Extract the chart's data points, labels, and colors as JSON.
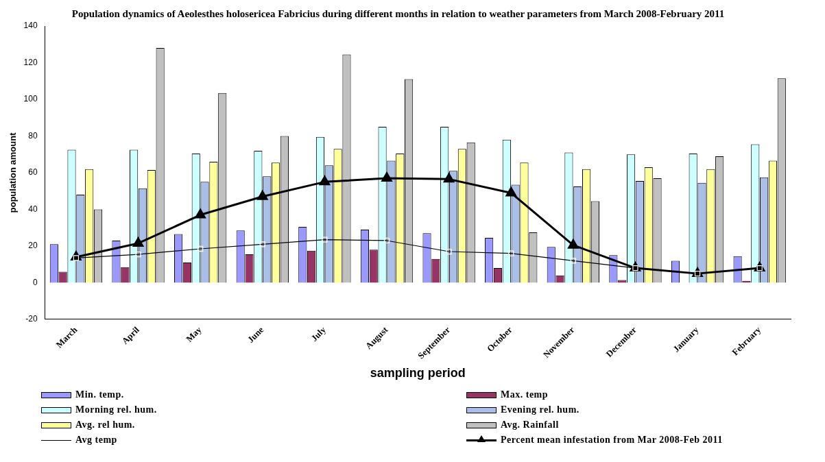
{
  "chart_data": {
    "type": "bar",
    "title": "Population dynamics of Aeolesthes holosericea Fabricius during different months in relation to weather parameters from March 2008-February 2011",
    "xlabel": "sampling period",
    "ylabel": "population amount",
    "categories": [
      "March",
      "April",
      "May",
      "June",
      "July",
      "August",
      "September",
      "October",
      "November",
      "December",
      "January",
      "February"
    ],
    "series": [
      {
        "name": "Min. temp.",
        "color": "#9999ff",
        "values": [
          21,
          23,
          26.5,
          28.5,
          30.5,
          29,
          27,
          24.5,
          19.5,
          15,
          12,
          14.5
        ]
      },
      {
        "name": "Max. temp",
        "color": "#993366",
        "values": [
          6,
          8.5,
          11,
          15.5,
          17.5,
          18,
          13,
          8,
          4,
          1.5,
          0,
          1
        ]
      },
      {
        "name": "Morning rel. hum.",
        "color": "#ccffff",
        "values": [
          72.5,
          72.5,
          70.5,
          72,
          79.5,
          85,
          85,
          78,
          71,
          70,
          70.5,
          75.5
        ]
      },
      {
        "name": "Evening rel. hum.",
        "color": "#a9bfe8",
        "values": [
          48,
          51.5,
          55,
          58,
          64,
          66.5,
          61,
          53.5,
          52.5,
          55.5,
          54.5,
          57.5
        ]
      },
      {
        "name": "Avg. rel hum.",
        "color": "#ffff99",
        "values": [
          62,
          61.5,
          66,
          65.5,
          73,
          70.5,
          73,
          65.5,
          62,
          63,
          62,
          66.5
        ]
      },
      {
        "name": "Avg. Rainfall",
        "color": "#c0c0c0",
        "values": [
          40,
          128,
          103.5,
          80,
          124.5,
          111,
          76.5,
          27.5,
          44.5,
          57,
          69,
          111.5
        ]
      },
      {
        "name": "Avg temp",
        "type": "line",
        "color": "#000000",
        "marker": "square",
        "line_style": "solid",
        "values": [
          13.5,
          15.5,
          18.5,
          21,
          23.5,
          23,
          17,
          16,
          12,
          8,
          5,
          8
        ]
      },
      {
        "name": "Percent mean  infestation from Mar 2008-Feb 2011",
        "type": "line",
        "color": "#000000",
        "marker": "triangle",
        "line_style": "solid",
        "values": [
          14,
          21.5,
          37,
          47,
          55,
          57,
          56.5,
          49,
          20.5,
          8,
          5,
          8
        ]
      }
    ],
    "ylim": [
      -20,
      140
    ],
    "yticks": [
      -20,
      0,
      20,
      40,
      60,
      80,
      100,
      120,
      140
    ],
    "grid": false,
    "legend": "bottom"
  }
}
